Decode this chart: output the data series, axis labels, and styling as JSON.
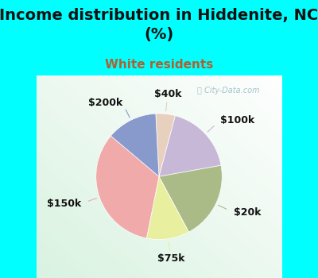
{
  "title": "Income distribution in Hiddenite, NC\n(%)",
  "subtitle": "White residents",
  "title_fontsize": 14,
  "subtitle_fontsize": 11,
  "background_color": "#00FFFF",
  "slices": [
    {
      "label": "$40k",
      "value": 5,
      "color": "#e8d0be"
    },
    {
      "label": "$100k",
      "value": 18,
      "color": "#c8b8d8"
    },
    {
      "label": "$20k",
      "value": 20,
      "color": "#aabb88"
    },
    {
      "label": "$75k",
      "value": 11,
      "color": "#e8f0a0"
    },
    {
      "label": "$150k",
      "value": 33,
      "color": "#f0aaaa"
    },
    {
      "label": "$200k",
      "value": 13,
      "color": "#8899cc"
    }
  ],
  "label_fontsize": 9,
  "watermark": "City-Data.com",
  "watermark_color": "#8ab0b8",
  "title_color": "#111111",
  "subtitle_color": "#b06030"
}
